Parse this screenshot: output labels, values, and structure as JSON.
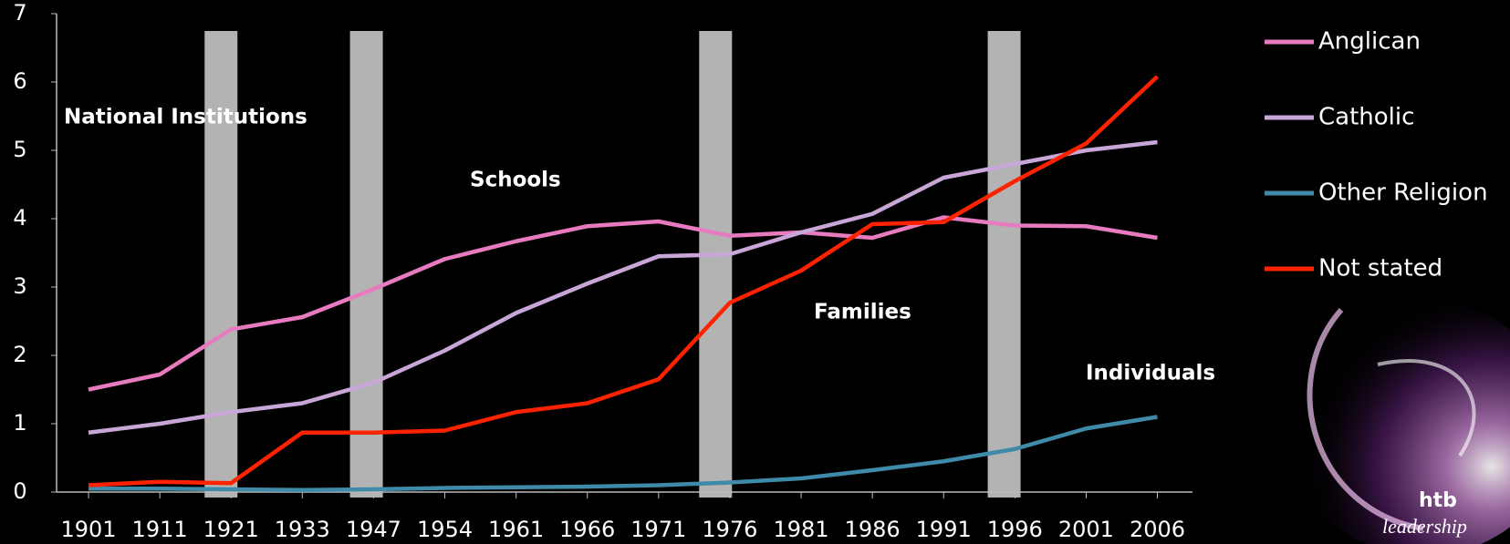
{
  "chart_data": {
    "type": "line",
    "categories": [
      "1901",
      "1911",
      "1921",
      "1933",
      "1947",
      "1954",
      "1961",
      "1966",
      "1971",
      "1976",
      "1981",
      "1986",
      "1991",
      "1996",
      "2001",
      "2006"
    ],
    "series": [
      {
        "name": "Anglican",
        "color": "#e87bbf",
        "values": [
          1.5,
          1.72,
          2.38,
          2.56,
          2.97,
          3.41,
          3.67,
          3.89,
          3.96,
          3.75,
          3.8,
          3.72,
          4.02,
          3.9,
          3.89,
          3.72
        ]
      },
      {
        "name": "Catholic",
        "color": "#c9a6d8",
        "values": [
          0.87,
          1.0,
          1.17,
          1.3,
          1.6,
          2.07,
          2.62,
          3.05,
          3.45,
          3.48,
          3.8,
          4.07,
          4.6,
          4.8,
          5.0,
          5.12
        ]
      },
      {
        "name": "Other Religion",
        "color": "#3f8aa8",
        "values": [
          0.05,
          0.05,
          0.04,
          0.03,
          0.04,
          0.06,
          0.07,
          0.08,
          0.1,
          0.14,
          0.2,
          0.32,
          0.45,
          0.63,
          0.93,
          1.1
        ]
      },
      {
        "name": "Not stated",
        "color": "#ff2200",
        "values": [
          0.1,
          0.15,
          0.13,
          0.87,
          0.87,
          0.9,
          1.17,
          1.3,
          1.65,
          2.77,
          3.24,
          3.92,
          3.95,
          4.55,
          5.1,
          6.08
        ]
      }
    ],
    "annotations": [
      "National Institutions",
      "Schools",
      "Families",
      "Individuals"
    ],
    "ylim": [
      0,
      7
    ],
    "yticks": [
      0,
      1,
      2,
      3,
      4,
      5,
      6,
      7
    ],
    "grid": false,
    "legend": "right"
  },
  "logo": {
    "name": "htb",
    "tagline": "leadership"
  }
}
